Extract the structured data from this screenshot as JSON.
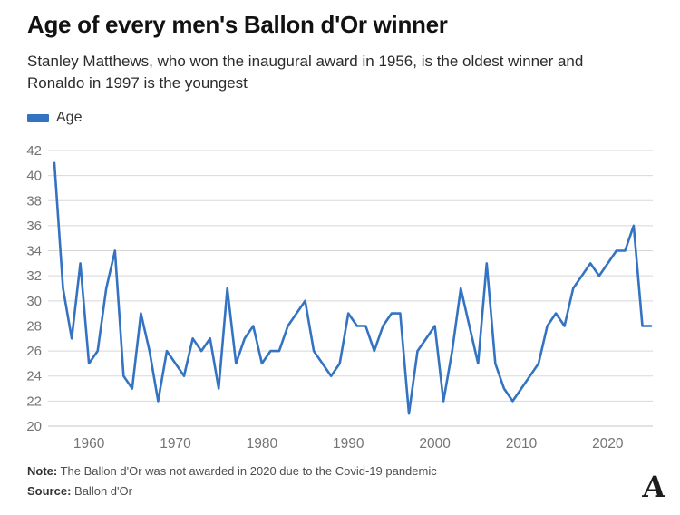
{
  "header": {
    "title": "Age of every men's Ballon d'Or winner",
    "subtitle_lines": [
      "Stanley Matthews, who won the inaugural award in 1956, is the oldest winner and",
      "Ronaldo in 1997 is the youngest"
    ]
  },
  "legend": {
    "label": "Age",
    "color": "#3373c2"
  },
  "chart_data": {
    "type": "line",
    "title": "Age of every men's Ballon d'Or winner",
    "xlabel": "",
    "ylabel": "",
    "x": [
      1956,
      1957,
      1958,
      1959,
      1960,
      1961,
      1962,
      1963,
      1964,
      1965,
      1966,
      1967,
      1968,
      1969,
      1970,
      1971,
      1972,
      1973,
      1974,
      1975,
      1976,
      1977,
      1978,
      1979,
      1980,
      1981,
      1982,
      1983,
      1984,
      1985,
      1986,
      1987,
      1988,
      1989,
      1990,
      1991,
      1992,
      1993,
      1994,
      1995,
      1996,
      1997,
      1998,
      1999,
      2000,
      2001,
      2002,
      2003,
      2004,
      2005,
      2006,
      2007,
      2008,
      2009,
      2010,
      2011,
      2012,
      2013,
      2014,
      2015,
      2016,
      2017,
      2018,
      2019,
      2021,
      2022,
      2023,
      2024,
      2025
    ],
    "series": [
      {
        "name": "Age",
        "values": [
          41,
          31,
          27,
          33,
          25,
          26,
          31,
          34,
          24,
          23,
          29,
          26,
          22,
          26,
          25,
          24,
          27,
          26,
          27,
          23,
          31,
          25,
          27,
          28,
          25,
          26,
          26,
          28,
          29,
          30,
          26,
          25,
          24,
          25,
          29,
          28,
          28,
          26,
          28,
          29,
          29,
          21,
          26,
          27,
          28,
          22,
          26,
          31,
          28,
          25,
          33,
          25,
          23,
          22,
          23,
          24,
          25,
          28,
          29,
          28,
          31,
          32,
          33,
          32,
          34,
          34,
          36,
          28,
          28
        ]
      }
    ],
    "ylim": [
      20,
      42
    ],
    "y_step": 2,
    "x_ticks": [
      1960,
      1970,
      1980,
      1990,
      2000,
      2010,
      2020
    ],
    "xlim": [
      1956,
      2025
    ],
    "grid": "horizontal",
    "legend_position": "top-left",
    "line_color": "#3373c2",
    "grid_color": "#d8d8d8",
    "baseline_color": "#c6c6c6",
    "tick_color": "#747474",
    "gap_year_not_drawn": 2020
  },
  "footer": {
    "note_label": "Note:",
    "note_text": "The Ballon d'Or was not awarded in 2020 due to the Covid-19 pandemic",
    "source_label": "Source:",
    "source_text": "Ballon d'Or",
    "logo_letter": "A"
  }
}
